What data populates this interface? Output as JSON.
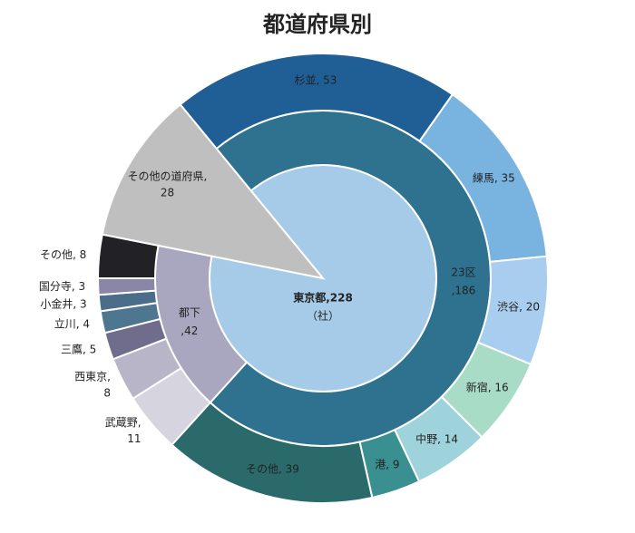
{
  "chart_data": {
    "type": "sunburst",
    "title": "都道府県別",
    "unit": "（社）",
    "children": [
      {
        "label": [
          "東京都,228"
        ],
        "value": 228,
        "color": "#a6cbe8",
        "children": [
          {
            "label": [
              "23区",
              ",186"
            ],
            "value": 186,
            "color": "#2e7290",
            "children": [
              {
                "label": [
                  "杉並, 53"
                ],
                "value": 53,
                "color": "#1f5f95"
              },
              {
                "label": [
                  "練馬, 35"
                ],
                "value": 35,
                "color": "#79b3e0"
              },
              {
                "label": [
                  "渋谷, 20"
                ],
                "value": 20,
                "color": "#a8cdee"
              },
              {
                "label": [
                  "新宿, 16"
                ],
                "value": 16,
                "color": "#a9dcc6"
              },
              {
                "label": [
                  "中野, 14"
                ],
                "value": 14,
                "color": "#9fd3dc"
              },
              {
                "label": [
                  "港, 9"
                ],
                "value": 9,
                "color": "#3a8f91"
              },
              {
                "label": [
                  "その他, 39"
                ],
                "value": 39,
                "color": "#2a6a6a"
              }
            ]
          },
          {
            "label": [
              "都下",
              ",42"
            ],
            "value": 42,
            "color": "#a9a6bf",
            "children": [
              {
                "label": [
                  "武蔵野,",
                  "11"
                ],
                "value": 11,
                "color": "#d6d4de"
              },
              {
                "label": [
                  "西東京,",
                  "8"
                ],
                "value": 8,
                "color": "#b8b5c9"
              },
              {
                "label": [
                  "三鷹, 5"
                ],
                "value": 5,
                "color": "#6f6c8c"
              },
              {
                "label": [
                  "立川, 4"
                ],
                "value": 4,
                "color": "#4f7690"
              },
              {
                "label": [
                  "小金井, 3"
                ],
                "value": 3,
                "color": "#4b6d89"
              },
              {
                "label": [
                  "国分寺, 3"
                ],
                "value": 3,
                "color": "#8a86a8"
              },
              {
                "label": [
                  "その他, 8"
                ],
                "value": 8,
                "color": "#222226"
              }
            ]
          }
        ]
      },
      {
        "label": [
          "その他の道府県,",
          "28"
        ],
        "value": 28,
        "color": "#bfbfbf"
      }
    ]
  }
}
